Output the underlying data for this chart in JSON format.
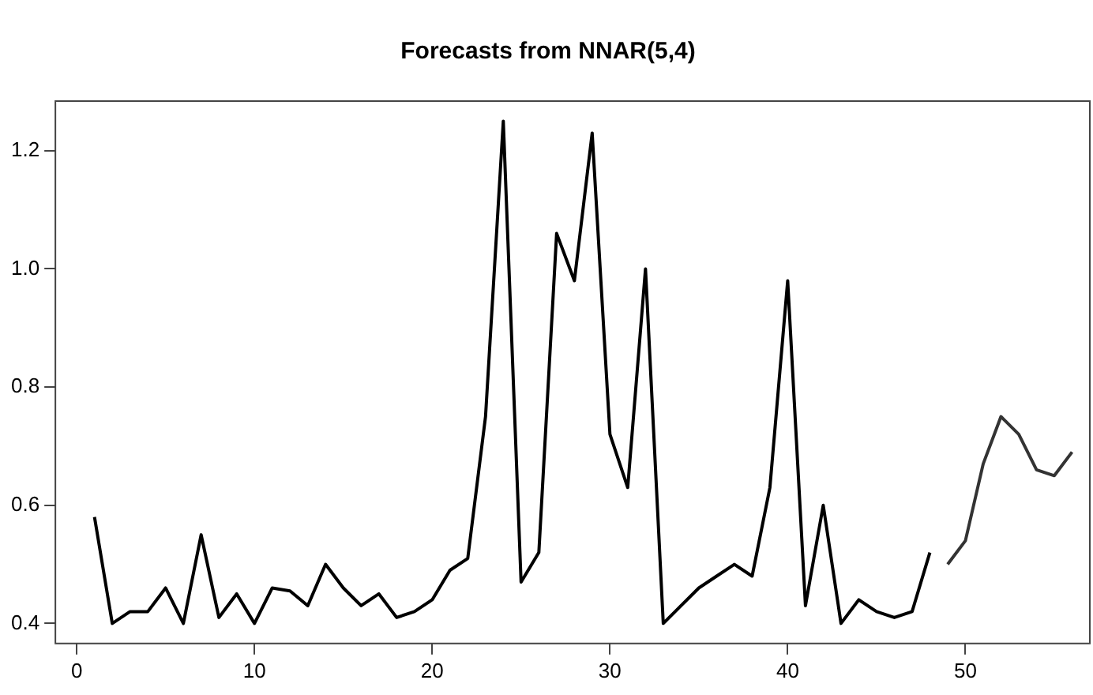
{
  "chart_data": {
    "type": "line",
    "title": "Forecasts from NNAR(5,4)",
    "xlim": [
      -1.2,
      57
    ],
    "ylim": [
      0.366,
      1.284
    ],
    "xticks": [
      0,
      10,
      20,
      30,
      40,
      50
    ],
    "yticks": [
      {
        "value": 0.4,
        "label": "0.4"
      },
      {
        "value": 0.6,
        "label": "0.6"
      },
      {
        "value": 0.8,
        "label": "0.8"
      },
      {
        "value": 1,
        "label": "1.0"
      },
      {
        "value": 1.2,
        "label": "1.2"
      }
    ],
    "grid": false,
    "legend": false,
    "marker": "none",
    "line_style": "solid",
    "series": [
      {
        "color": "#000000",
        "x": [
          1,
          2,
          3,
          4,
          5,
          6,
          7,
          8,
          9,
          10,
          11,
          12,
          13,
          14,
          15,
          16,
          17,
          18,
          19,
          20,
          21,
          22,
          23,
          24,
          25,
          26,
          27,
          28,
          29,
          30,
          31,
          32,
          33,
          34,
          35,
          36,
          37,
          38,
          39,
          40,
          41,
          42,
          43,
          44,
          45,
          46,
          47,
          48
        ],
        "values": [
          0.58,
          0.4,
          0.42,
          0.42,
          0.46,
          0.4,
          0.55,
          0.41,
          0.45,
          0.4,
          0.46,
          0.455,
          0.43,
          0.5,
          0.46,
          0.43,
          0.45,
          0.41,
          0.42,
          0.44,
          0.49,
          0.51,
          0.75,
          1.25,
          0.47,
          0.52,
          1.06,
          0.98,
          1.23,
          0.72,
          0.63,
          1.0,
          0.4,
          0.43,
          0.46,
          0.48,
          0.5,
          0.48,
          0.63,
          0.98,
          0.43,
          0.6,
          0.4,
          0.44,
          0.42,
          0.41,
          0.42,
          0.52
        ]
      },
      {
        "color": "#333333",
        "x": [
          49,
          50,
          51,
          52,
          53,
          54,
          55,
          56
        ],
        "values": [
          0.5,
          0.54,
          0.67,
          0.75,
          0.72,
          0.66,
          0.65,
          0.69
        ]
      }
    ]
  }
}
